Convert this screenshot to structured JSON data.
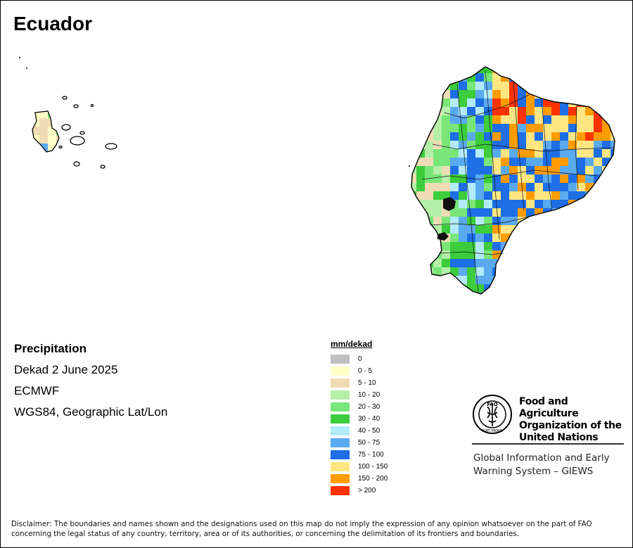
{
  "title": "Ecuador",
  "info": {
    "variable": "Precipitation",
    "period": "Dekad 2 June 2025",
    "source": "ECMWF",
    "projection": "WGS84, Geographic Lat/Lon"
  },
  "legend": {
    "title": "mm/dekad",
    "classes": [
      {
        "label": "0",
        "color": "#c0c0c0"
      },
      {
        "label": "0 - 5",
        "color": "#ffffc8"
      },
      {
        "label": "5 - 10",
        "color": "#f0dcb4"
      },
      {
        "label": "10 - 20",
        "color": "#b4f0a8"
      },
      {
        "label": "20 - 30",
        "color": "#78e678"
      },
      {
        "label": "30 - 40",
        "color": "#3ccc3c"
      },
      {
        "label": "40 - 50",
        "color": "#b4ebfa"
      },
      {
        "label": "50 - 75",
        "color": "#5aaaf0"
      },
      {
        "label": "75 - 100",
        "color": "#1e6ee6"
      },
      {
        "label": "100 - 150",
        "color": "#ffe682"
      },
      {
        "label": "150 - 200",
        "color": "#ff9c00"
      },
      {
        "label": "> 200",
        "color": "#ff3200"
      }
    ]
  },
  "logo": {
    "org_line1": "Food and Agriculture",
    "org_line2": "Organization of the",
    "org_line3": "United Nations",
    "emblem_text": "FIAT PANIS",
    "emblem_letters": "FAO",
    "giews_line1": "Global Information and Early",
    "giews_line2": "Warning System – GIEWS"
  },
  "disclaimer": "Disclaimer: The boundaries and names shown and the designations used on this map do not imply the expression of any opinion whatsoever on the part of FAO concerning the legal status of any country, territory, area or of its authorities, or concerning the delimitation of its frontiers and boundaries."
}
